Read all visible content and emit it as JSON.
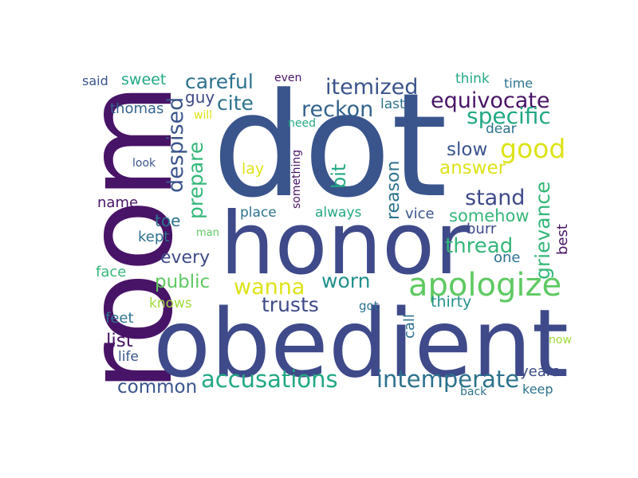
{
  "words": {
    "room": "room",
    "dot": "dot",
    "honor": "honor",
    "obedient": "obedient",
    "apologize": "apologize",
    "accusations": "accusations",
    "intemperate": "intemperate",
    "good": "good",
    "equivocate": "equivocate",
    "specific": "specific",
    "itemized": "itemized",
    "careful": "careful",
    "cite": "cite",
    "reckon": "reckon",
    "despised": "despised",
    "prepare": "prepare",
    "stand": "stand",
    "slow": "slow",
    "answer": "answer",
    "grievance": "grievance",
    "reason": "reason",
    "thread": "thread",
    "somehow": "somehow",
    "worn": "worn",
    "wanna": "wanna",
    "trusts": "trusts",
    "public": "public",
    "every": "every",
    "common": "common",
    "list": "list",
    "sweet": "sweet",
    "said": "said",
    "thomas": "thomas",
    "guy": "guy",
    "bit": "bit",
    "lay": "lay",
    "name": "name",
    "toe": "toe",
    "kept": "kept",
    "face": "face",
    "knows": "knows",
    "feet": "feet",
    "life": "life",
    "place": "place",
    "always": "always",
    "vice": "vice",
    "burr": "burr",
    "one": "one",
    "best": "best",
    "thirty": "thirty",
    "call": "call",
    "got": "got",
    "years": "years",
    "keep": "keep",
    "back": "back",
    "now": "now",
    "dear": "dear",
    "think": "think",
    "time": "time",
    "last": "last",
    "even": "even",
    "need": "need",
    "will": "will",
    "something": "something",
    "look": "look",
    "man": "man"
  },
  "colors": {
    "dark_purple": "#481467",
    "indigo": "#3e4a89",
    "slate": "#3a548c",
    "steel_blue": "#33638d",
    "teal_blue": "#2c728e",
    "teal": "#21918c",
    "green_teal": "#22a884",
    "sea_green": "#35b779",
    "green": "#5ec962",
    "lime": "#9fda3a",
    "yellow": "#dde318"
  }
}
